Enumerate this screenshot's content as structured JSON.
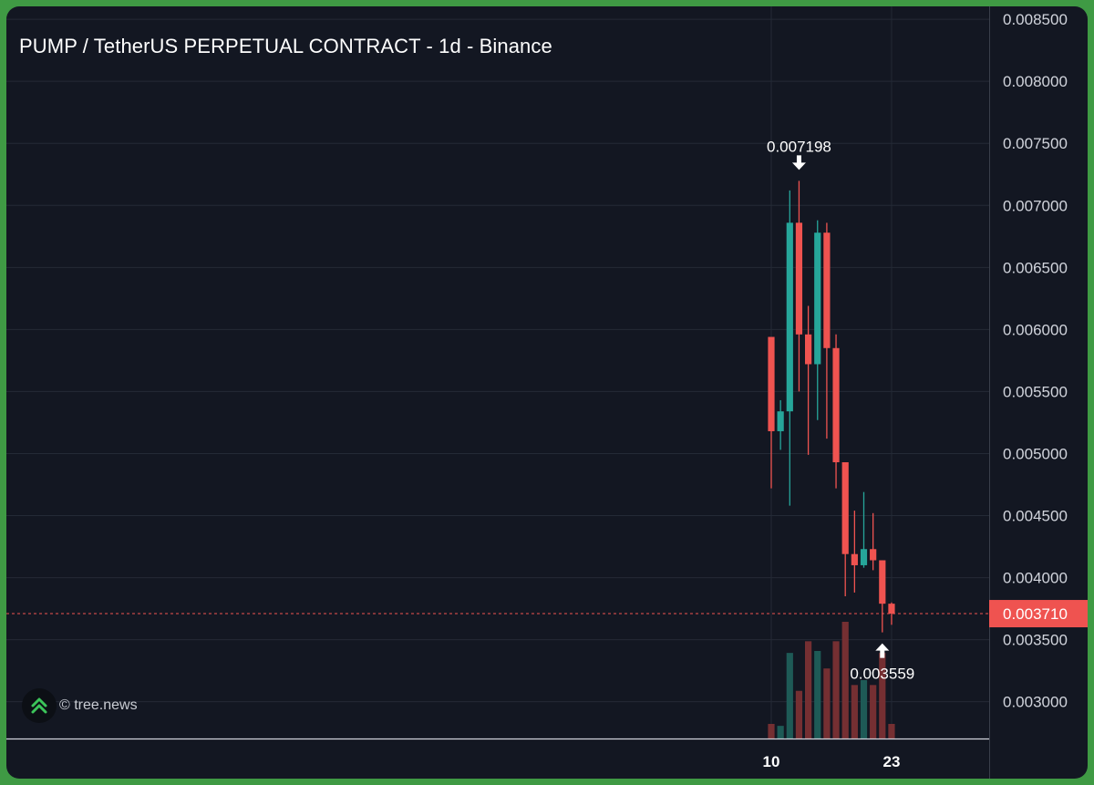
{
  "header": {
    "title": "PUMP / TetherUS PERPETUAL CONTRACT - 1d - Binance"
  },
  "watermark": {
    "text": "© tree.news",
    "icon": "double-chevron-up-icon"
  },
  "colors": {
    "up": "#26a69a",
    "down": "#ef5350",
    "background": "#131722",
    "grid": "#242a36",
    "price_line": "#ef5350"
  },
  "chart_data": {
    "type": "candlestick",
    "title": "PUMP / TetherUS PERPETUAL CONTRACT - 1d - Binance",
    "interval": "1d",
    "x_tick_labels": [
      {
        "label": "10",
        "index": 0
      },
      {
        "label": "23",
        "index": 13
      }
    ],
    "y_ticks": [
      "0.008500",
      "0.008000",
      "0.007500",
      "0.007000",
      "0.006500",
      "0.006000",
      "0.005500",
      "0.005000",
      "0.004500",
      "0.004000",
      "0.003500",
      "0.003000"
    ],
    "ylim": [
      0.0027,
      0.0086
    ],
    "xlim": [
      -0.8,
      23.1
    ],
    "y_axis_side": "right",
    "grid": true,
    "last_price": "0.003710",
    "last_price_value": 0.00371,
    "annotations": [
      {
        "text": "0.007198",
        "value": 0.007198,
        "index": 3,
        "kind": "high"
      },
      {
        "text": "0.003559",
        "value": 0.003559,
        "index": 12,
        "kind": "low"
      }
    ],
    "candles": [
      {
        "open": 0.00594,
        "high": 0.00594,
        "low": 0.00472,
        "close": 0.00518
      },
      {
        "open": 0.00518,
        "high": 0.00543,
        "low": 0.00503,
        "close": 0.00534
      },
      {
        "open": 0.00534,
        "high": 0.00712,
        "low": 0.00458,
        "close": 0.00686
      },
      {
        "open": 0.00686,
        "high": 0.007198,
        "low": 0.0055,
        "close": 0.00596
      },
      {
        "open": 0.00596,
        "high": 0.00619,
        "low": 0.00499,
        "close": 0.00572
      },
      {
        "open": 0.00572,
        "high": 0.00688,
        "low": 0.00527,
        "close": 0.00678
      },
      {
        "open": 0.00678,
        "high": 0.00686,
        "low": 0.00512,
        "close": 0.00585
      },
      {
        "open": 0.00585,
        "high": 0.00596,
        "low": 0.00472,
        "close": 0.00493
      },
      {
        "open": 0.00493,
        "high": 0.00493,
        "low": 0.00385,
        "close": 0.00419
      },
      {
        "open": 0.00419,
        "high": 0.00454,
        "low": 0.00388,
        "close": 0.0041
      },
      {
        "open": 0.0041,
        "high": 0.00469,
        "low": 0.00408,
        "close": 0.00423
      },
      {
        "open": 0.00423,
        "high": 0.00452,
        "low": 0.00406,
        "close": 0.00414
      },
      {
        "open": 0.00414,
        "high": 0.00414,
        "low": 0.003559,
        "close": 0.00379
      },
      {
        "open": 0.00379,
        "high": 0.0038,
        "low": 0.00362,
        "close": 0.00371
      }
    ],
    "volume": [
      {
        "value": 0.15,
        "dir": "down"
      },
      {
        "value": 0.13,
        "dir": "up"
      },
      {
        "value": 0.88,
        "dir": "up"
      },
      {
        "value": 0.49,
        "dir": "down"
      },
      {
        "value": 1.0,
        "dir": "down"
      },
      {
        "value": 0.9,
        "dir": "up"
      },
      {
        "value": 0.72,
        "dir": "down"
      },
      {
        "value": 1.0,
        "dir": "down"
      },
      {
        "value": 1.2,
        "dir": "down"
      },
      {
        "value": 0.55,
        "dir": "down"
      },
      {
        "value": 0.6,
        "dir": "up"
      },
      {
        "value": 0.55,
        "dir": "down"
      },
      {
        "value": 0.88,
        "dir": "down"
      },
      {
        "value": 0.15,
        "dir": "down"
      }
    ]
  }
}
